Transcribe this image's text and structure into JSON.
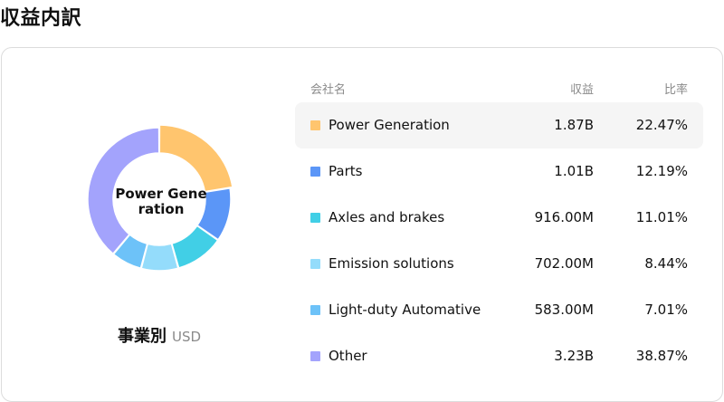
{
  "page": {
    "title": "収益内訳"
  },
  "caption": {
    "segment_label": "事業別",
    "currency": "USD"
  },
  "table": {
    "headers": {
      "name": "会社名",
      "revenue": "収益",
      "ratio": "比率"
    },
    "rows": [
      {
        "name": "Power Generation",
        "revenue": "1.87B",
        "ratio": "22.47%",
        "color": "#FFC56E",
        "active": true
      },
      {
        "name": "Parts",
        "revenue": "1.01B",
        "ratio": "12.19%",
        "color": "#5B96F7",
        "active": false
      },
      {
        "name": "Axles and brakes",
        "revenue": "916.00M",
        "ratio": "11.01%",
        "color": "#41CFE6",
        "active": false
      },
      {
        "name": "Emission solutions",
        "revenue": "702.00M",
        "ratio": "8.44%",
        "color": "#94DCFB",
        "active": false
      },
      {
        "name": "Light-duty Automative",
        "revenue": "583.00M",
        "ratio": "7.01%",
        "color": "#6DC2F8",
        "active": false
      },
      {
        "name": "Other",
        "revenue": "3.23B",
        "ratio": "38.87%",
        "color": "#A3A3FC",
        "active": false
      }
    ]
  },
  "chart_data": {
    "type": "pie",
    "donut": true,
    "center_label": "Power Generation",
    "highlighted": "Power Generation",
    "categories": [
      "Power Generation",
      "Parts",
      "Axles and brakes",
      "Emission solutions",
      "Light-duty Automative",
      "Other"
    ],
    "values": [
      22.47,
      12.19,
      11.01,
      8.44,
      7.01,
      38.87
    ],
    "colors": [
      "#FFC56E",
      "#5B96F7",
      "#41CFE6",
      "#94DCFB",
      "#6DC2F8",
      "#A3A3FC"
    ]
  }
}
